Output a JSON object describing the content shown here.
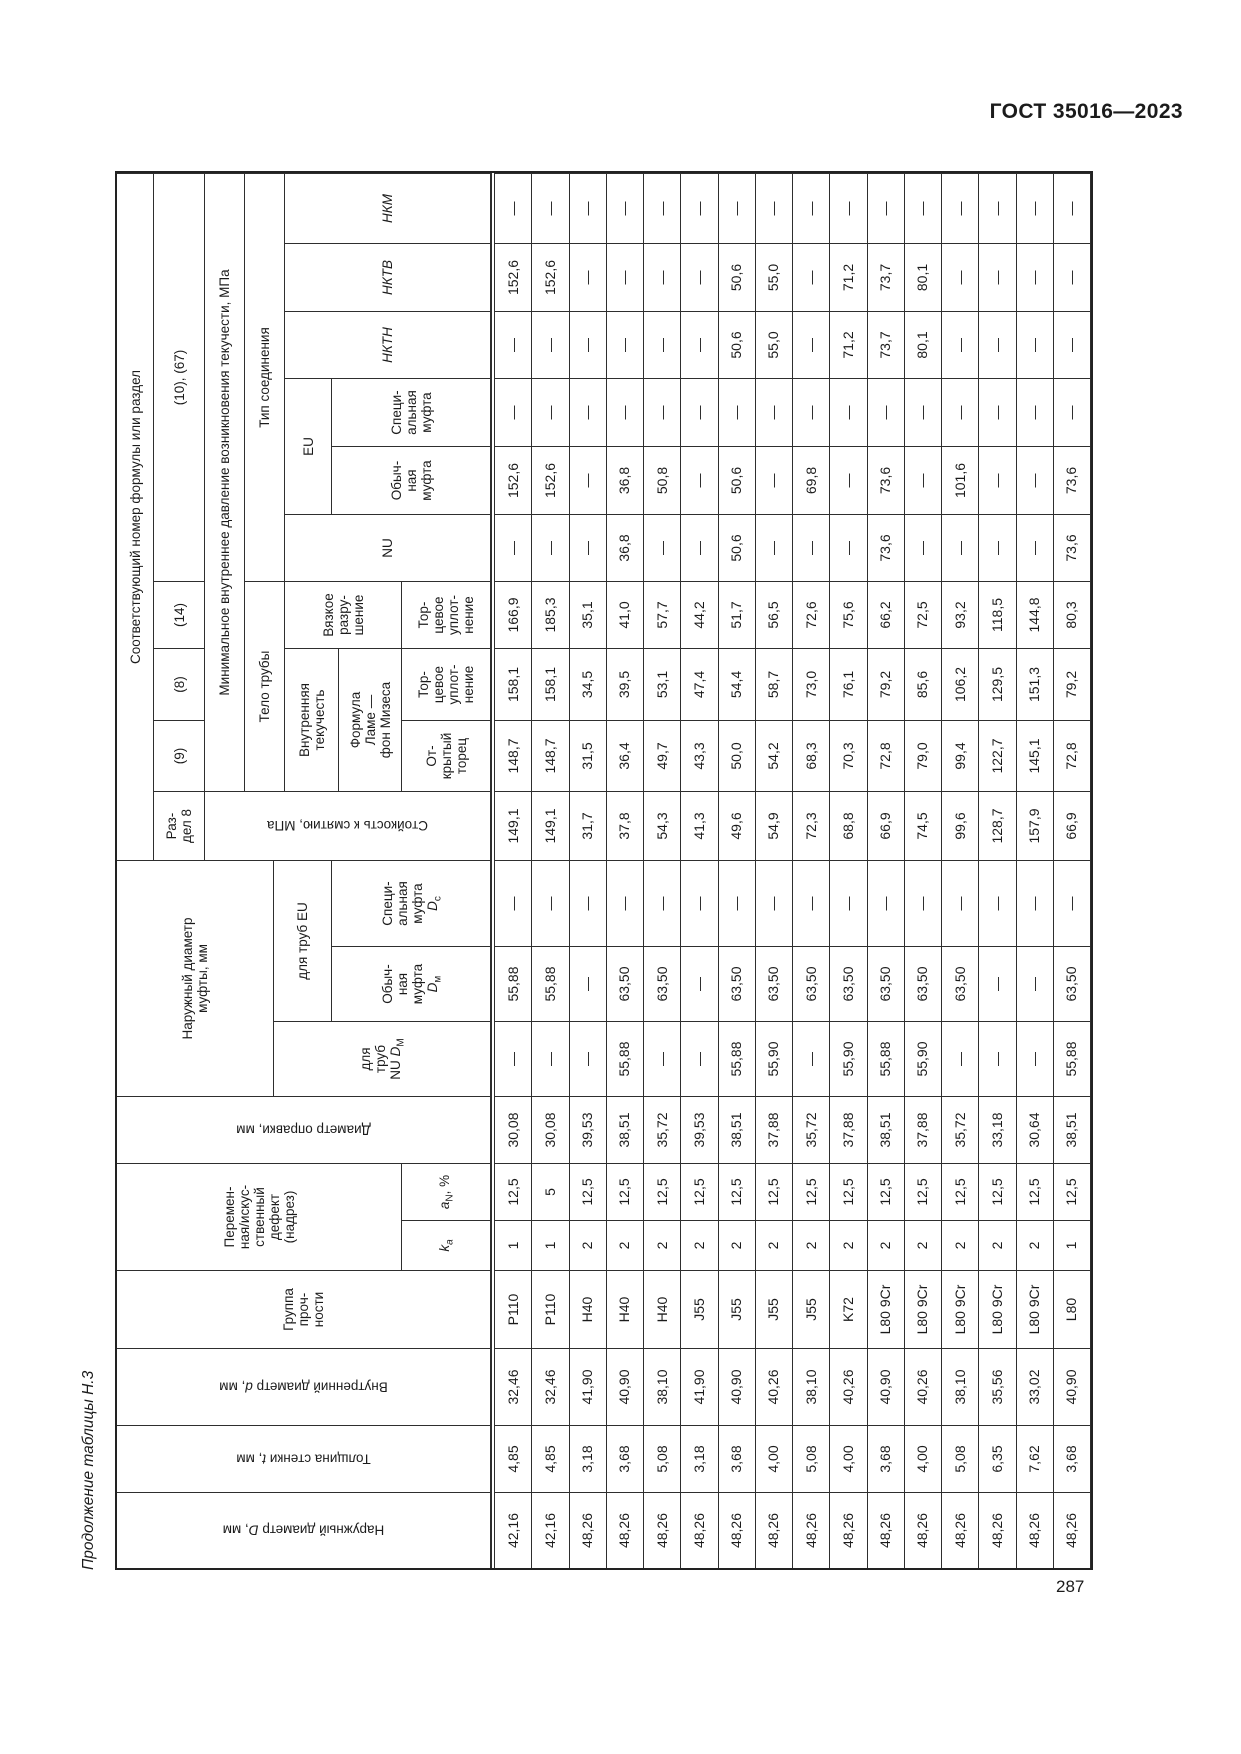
{
  "page": {
    "standard": "ГОСТ 35016—2023",
    "number": "287",
    "caption": "Продолжение таблицы Н.3"
  },
  "table": {
    "headers": {
      "formula_number": "Соответствующий номер формулы или раздел",
      "f1067": "(10), (67)",
      "f14": "(14)",
      "f8": "(8)",
      "f9": "(9)",
      "razdel8": "Раз-\nдел 8",
      "min_pressure": "Минимальное внутреннее давление возникновения текучести, МПа",
      "conn_type": "Тип соединения",
      "pipe_body": "Тело трубы",
      "nkm": "НКМ",
      "nktv": "НКТВ",
      "nktn": "НКТН",
      "eu": "EU",
      "nu": "NU",
      "nu_label": "NU",
      "special_coupling": "Специ-\nальная\nмуфта",
      "regular_coupling": "Обыч-\nная\nмуфта",
      "viscous": "Вязкое\nразру-\nшение",
      "inner_yield": "Внутренняя\nтекучесть",
      "lame": "Формула\nЛаме —\nфон Мизеса",
      "end_seal": "Тор-\nцевое\nуплот-\nнение",
      "open_end": "От-\nкрытый\nторец",
      "crush": "Стойкость к смятию, МПа",
      "coupling_od": "Наружный диаметр\nмуфты, мм",
      "for_eu": "для труб EU",
      "for_nu": "для\nтруб",
      "D_letter": "D",
      "sub_m": "м",
      "sub_M": "М",
      "sub_c": "с",
      "mandrel": "Диаметр оправки, мм",
      "defect": "Перемен-\nная/искус-\nственный\nдефект\n(надрез)",
      "aN_letter": "a",
      "aN_sub": "N",
      "aN_rest": ", %",
      "ka_letter": "k",
      "ka_sub": "a",
      "grade": "Группа\nпроч-\nности",
      "inner_d_pre": "Внутренний диаметр ",
      "inner_d_it": "d",
      "inner_d_post": ", мм",
      "wall_pre": "Толщина стенки ",
      "wall_it": "t",
      "wall_post": ", мм",
      "od_pre": "Наружный диаметр ",
      "od_it": "D",
      "od_post": ", мм"
    },
    "column_keys": [
      "od",
      "wall",
      "id",
      "grade",
      "ka",
      "an",
      "mandrel",
      "nu_dm",
      "eu_dm",
      "eu_dc",
      "crush",
      "f9",
      "f8",
      "f14",
      "conn_nu",
      "conn_eu",
      "conn_eu_sp",
      "nktn",
      "nktv",
      "nkm"
    ],
    "rows": [
      [
        "42,16",
        "4,85",
        "32,46",
        "P110",
        "1",
        "12,5",
        "30,08",
        "—",
        "55,88",
        "—",
        "149,1",
        "148,7",
        "158,1",
        "166,9",
        "—",
        "152,6",
        "—",
        "—",
        "152,6",
        "—"
      ],
      [
        "42,16",
        "4,85",
        "32,46",
        "P110",
        "1",
        "5",
        "30,08",
        "—",
        "55,88",
        "—",
        "149,1",
        "148,7",
        "158,1",
        "185,3",
        "—",
        "152,6",
        "—",
        "—",
        "152,6",
        "—"
      ],
      [
        "48,26",
        "3,18",
        "41,90",
        "H40",
        "2",
        "12,5",
        "39,53",
        "—",
        "—",
        "—",
        "31,7",
        "31,5",
        "34,5",
        "35,1",
        "—",
        "—",
        "—",
        "—",
        "—",
        "—"
      ],
      [
        "48,26",
        "3,68",
        "40,90",
        "H40",
        "2",
        "12,5",
        "38,51",
        "55,88",
        "63,50",
        "—",
        "37,8",
        "36,4",
        "39,5",
        "41,0",
        "36,8",
        "36,8",
        "—",
        "—",
        "—",
        "—"
      ],
      [
        "48,26",
        "5,08",
        "38,10",
        "H40",
        "2",
        "12,5",
        "35,72",
        "—",
        "63,50",
        "—",
        "54,3",
        "49,7",
        "53,1",
        "57,7",
        "—",
        "50,8",
        "—",
        "—",
        "—",
        "—"
      ],
      [
        "48,26",
        "3,18",
        "41,90",
        "J55",
        "2",
        "12,5",
        "39,53",
        "—",
        "—",
        "—",
        "41,3",
        "43,3",
        "47,4",
        "44,2",
        "—",
        "—",
        "—",
        "—",
        "—",
        "—"
      ],
      [
        "48,26",
        "3,68",
        "40,90",
        "J55",
        "2",
        "12,5",
        "38,51",
        "55,88",
        "63,50",
        "—",
        "49,6",
        "50,0",
        "54,4",
        "51,7",
        "50,6",
        "50,6",
        "—",
        "50,6",
        "50,6",
        "—"
      ],
      [
        "48,26",
        "4,00",
        "40,26",
        "J55",
        "2",
        "12,5",
        "37,88",
        "55,90",
        "63,50",
        "—",
        "54,9",
        "54,2",
        "58,7",
        "56,5",
        "—",
        "—",
        "—",
        "55,0",
        "55,0",
        "—"
      ],
      [
        "48,26",
        "5,08",
        "38,10",
        "J55",
        "2",
        "12,5",
        "35,72",
        "—",
        "63,50",
        "—",
        "72,3",
        "68,3",
        "73,0",
        "72,6",
        "—",
        "69,8",
        "—",
        "—",
        "—",
        "—"
      ],
      [
        "48,26",
        "4,00",
        "40,26",
        "K72",
        "2",
        "12,5",
        "37,88",
        "55,90",
        "63,50",
        "—",
        "68,8",
        "70,3",
        "76,1",
        "75,6",
        "—",
        "—",
        "—",
        "71,2",
        "71,2",
        "—"
      ],
      [
        "48,26",
        "3,68",
        "40,90",
        "L80 9Cr",
        "2",
        "12,5",
        "38,51",
        "55,88",
        "63,50",
        "—",
        "66,9",
        "72,8",
        "79,2",
        "66,2",
        "73,6",
        "73,6",
        "—",
        "73,7",
        "73,7",
        "—"
      ],
      [
        "48,26",
        "4,00",
        "40,26",
        "L80 9Cr",
        "2",
        "12,5",
        "37,88",
        "55,90",
        "63,50",
        "—",
        "74,5",
        "79,0",
        "85,6",
        "72,5",
        "—",
        "—",
        "—",
        "80,1",
        "80,1",
        "—"
      ],
      [
        "48,26",
        "5,08",
        "38,10",
        "L80 9Cr",
        "2",
        "12,5",
        "35,72",
        "—",
        "63,50",
        "—",
        "99,6",
        "99,4",
        "106,2",
        "93,2",
        "—",
        "101,6",
        "—",
        "—",
        "—",
        "—"
      ],
      [
        "48,26",
        "6,35",
        "35,56",
        "L80 9Cr",
        "2",
        "12,5",
        "33,18",
        "—",
        "—",
        "—",
        "128,7",
        "122,7",
        "129,5",
        "118,5",
        "—",
        "—",
        "—",
        "—",
        "—",
        "—"
      ],
      [
        "48,26",
        "7,62",
        "33,02",
        "L80 9Cr",
        "2",
        "12,5",
        "30,64",
        "—",
        "—",
        "—",
        "157,9",
        "145,1",
        "151,3",
        "144,8",
        "—",
        "—",
        "—",
        "—",
        "—",
        "—"
      ],
      [
        "48,26",
        "3,68",
        "40,90",
        "L80",
        "1",
        "12,5",
        "38,51",
        "55,88",
        "63,50",
        "—",
        "66,9",
        "72,8",
        "79,2",
        "80,3",
        "73,6",
        "73,6",
        "—",
        "—",
        "—",
        "—"
      ]
    ]
  }
}
